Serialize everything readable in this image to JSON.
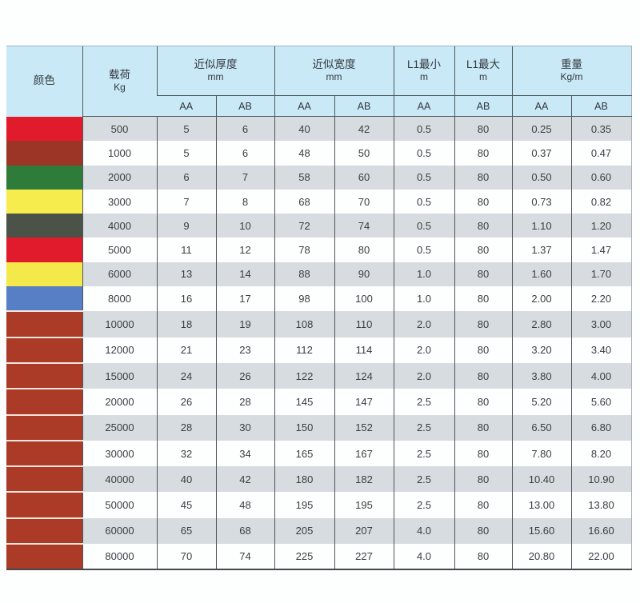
{
  "table": {
    "headers": {
      "color": "颜色",
      "load": {
        "title": "载荷",
        "unit": "Kg"
      },
      "thickness": {
        "title": "近似厚度",
        "unit": "mm"
      },
      "width": {
        "title": "近似宽度",
        "unit": "mm"
      },
      "l1_min": {
        "title": "L1最小",
        "unit": "m"
      },
      "l1_max": {
        "title": "L1最大",
        "unit": "m"
      },
      "weight": {
        "title": "重量",
        "unit": "Kg/m"
      },
      "sub": [
        "AA",
        "AB",
        "AA",
        "AB",
        "AA",
        "AB",
        "AA",
        "AB"
      ]
    },
    "palette": {
      "header_bg": "#c9e9f7",
      "row_stripe": "#d6dcdf",
      "grid_line": "#50575c"
    },
    "row_keys": [
      "load",
      "t_aa",
      "t_ab",
      "w_aa",
      "w_ab",
      "l1_min",
      "l1_max",
      "wt_aa",
      "wt_ab"
    ],
    "rows": [
      {
        "color_name": "red",
        "color": "#e11b2b",
        "swatch_separator": false,
        "load": "500",
        "t_aa": "5",
        "t_ab": "6",
        "w_aa": "40",
        "w_ab": "42",
        "l1_min": "0.5",
        "l1_max": "80",
        "wt_aa": "0.25",
        "wt_ab": "0.35"
      },
      {
        "color_name": "dark-red",
        "color": "#9d3527",
        "swatch_separator": false,
        "load": "1000",
        "t_aa": "5",
        "t_ab": "6",
        "w_aa": "48",
        "w_ab": "50",
        "l1_min": "0.5",
        "l1_max": "80",
        "wt_aa": "0.37",
        "wt_ab": "0.47"
      },
      {
        "color_name": "green",
        "color": "#2e7b3a",
        "swatch_separator": false,
        "load": "2000",
        "t_aa": "6",
        "t_ab": "7",
        "w_aa": "58",
        "w_ab": "60",
        "l1_min": "0.5",
        "l1_max": "80",
        "wt_aa": "0.50",
        "wt_ab": "0.60"
      },
      {
        "color_name": "yellow",
        "color": "#f6ec4d",
        "swatch_separator": false,
        "load": "3000",
        "t_aa": "7",
        "t_ab": "8",
        "w_aa": "68",
        "w_ab": "70",
        "l1_min": "0.5",
        "l1_max": "80",
        "wt_aa": "0.73",
        "wt_ab": "0.82"
      },
      {
        "color_name": "charcoal",
        "color": "#4b5349",
        "swatch_separator": false,
        "load": "4000",
        "t_aa": "9",
        "t_ab": "10",
        "w_aa": "72",
        "w_ab": "74",
        "l1_min": "0.5",
        "l1_max": "80",
        "wt_aa": "1.10",
        "wt_ab": "1.20"
      },
      {
        "color_name": "red",
        "color": "#e11b2b",
        "swatch_separator": false,
        "load": "5000",
        "t_aa": "11",
        "t_ab": "12",
        "w_aa": "78",
        "w_ab": "80",
        "l1_min": "0.5",
        "l1_max": "80",
        "wt_aa": "1.37",
        "wt_ab": "1.47"
      },
      {
        "color_name": "yellow",
        "color": "#f3e94a",
        "swatch_separator": false,
        "load": "6000",
        "t_aa": "13",
        "t_ab": "14",
        "w_aa": "88",
        "w_ab": "90",
        "l1_min": "1.0",
        "l1_max": "80",
        "wt_aa": "1.60",
        "wt_ab": "1.70"
      },
      {
        "color_name": "blue",
        "color": "#567fc6",
        "swatch_separator": true,
        "load": "8000",
        "t_aa": "16",
        "t_ab": "17",
        "w_aa": "98",
        "w_ab": "100",
        "l1_min": "1.0",
        "l1_max": "80",
        "wt_aa": "2.00",
        "wt_ab": "2.20"
      },
      {
        "color_name": "brick-red",
        "color": "#ab3a27",
        "swatch_separator": true,
        "load": "10000",
        "t_aa": "18",
        "t_ab": "19",
        "w_aa": "108",
        "w_ab": "110",
        "l1_min": "2.0",
        "l1_max": "80",
        "wt_aa": "2.80",
        "wt_ab": "3.00"
      },
      {
        "color_name": "brick-red",
        "color": "#ab3a27",
        "swatch_separator": true,
        "load": "12000",
        "t_aa": "21",
        "t_ab": "23",
        "w_aa": "112",
        "w_ab": "114",
        "l1_min": "2.0",
        "l1_max": "80",
        "wt_aa": "3.20",
        "wt_ab": "3.40"
      },
      {
        "color_name": "brick-red",
        "color": "#ab3a27",
        "swatch_separator": true,
        "load": "15000",
        "t_aa": "24",
        "t_ab": "26",
        "w_aa": "122",
        "w_ab": "124",
        "l1_min": "2.0",
        "l1_max": "80",
        "wt_aa": "3.80",
        "wt_ab": "4.00"
      },
      {
        "color_name": "brick-red",
        "color": "#ab3a27",
        "swatch_separator": true,
        "load": "20000",
        "t_aa": "26",
        "t_ab": "28",
        "w_aa": "145",
        "w_ab": "147",
        "l1_min": "2.5",
        "l1_max": "80",
        "wt_aa": "5.20",
        "wt_ab": "5.60"
      },
      {
        "color_name": "brick-red",
        "color": "#ab3a27",
        "swatch_separator": true,
        "load": "25000",
        "t_aa": "28",
        "t_ab": "30",
        "w_aa": "150",
        "w_ab": "152",
        "l1_min": "2.5",
        "l1_max": "80",
        "wt_aa": "6.50",
        "wt_ab": "6.80"
      },
      {
        "color_name": "brick-red",
        "color": "#ab3a27",
        "swatch_separator": true,
        "load": "30000",
        "t_aa": "32",
        "t_ab": "34",
        "w_aa": "165",
        "w_ab": "167",
        "l1_min": "2.5",
        "l1_max": "80",
        "wt_aa": "7.80",
        "wt_ab": "8.20"
      },
      {
        "color_name": "brick-red",
        "color": "#ab3a27",
        "swatch_separator": true,
        "load": "40000",
        "t_aa": "40",
        "t_ab": "42",
        "w_aa": "180",
        "w_ab": "182",
        "l1_min": "2.5",
        "l1_max": "80",
        "wt_aa": "10.40",
        "wt_ab": "10.90"
      },
      {
        "color_name": "brick-red",
        "color": "#ab3a27",
        "swatch_separator": true,
        "load": "50000",
        "t_aa": "45",
        "t_ab": "48",
        "w_aa": "195",
        "w_ab": "195",
        "l1_min": "2.5",
        "l1_max": "80",
        "wt_aa": "13.00",
        "wt_ab": "13.80"
      },
      {
        "color_name": "brick-red",
        "color": "#ab3a27",
        "swatch_separator": true,
        "load": "60000",
        "t_aa": "65",
        "t_ab": "68",
        "w_aa": "205",
        "w_ab": "207",
        "l1_min": "4.0",
        "l1_max": "80",
        "wt_aa": "15.60",
        "wt_ab": "16.60"
      },
      {
        "color_name": "brick-red",
        "color": "#ab3a27",
        "swatch_separator": false,
        "load": "80000",
        "t_aa": "70",
        "t_ab": "74",
        "w_aa": "225",
        "w_ab": "227",
        "l1_min": "4.0",
        "l1_max": "80",
        "wt_aa": "20.80",
        "wt_ab": "22.00"
      }
    ]
  }
}
